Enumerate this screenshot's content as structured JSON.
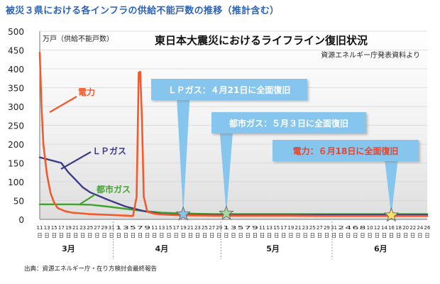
{
  "page_title": "被災３県における各インフラの供給不能戸数の推移（推計含む）",
  "source_note": "出典：資源エネルギー庁・在り方検討会最終報告",
  "colors": {
    "title": "#2b63b8",
    "electric": "#f25a2c",
    "lpgas": "#3d3b86",
    "citygas": "#3fa32e",
    "callout": "#86c6ee",
    "grid": "#d4d4d4",
    "star_blue": "#86c6ee",
    "star_green": "#a6d8a0",
    "star_yellow": "#f4e36a"
  },
  "chart_data": {
    "type": "line",
    "title": "東日本大震災におけるライフライン復旧状況",
    "subtitle": "資源エネルギー庁発表資料より",
    "ylabel": "万戸（供給不能戸数）",
    "ylim": [
      0,
      500
    ],
    "y_ticks": [
      0,
      50,
      100,
      150,
      200,
      250,
      300,
      350,
      400,
      450,
      500
    ],
    "x_range_days": [
      11,
      119
    ],
    "x_tick_days": [
      11,
      13,
      15,
      17,
      19,
      21,
      23,
      25,
      27,
      29,
      31,
      33,
      35,
      37,
      39,
      41,
      43,
      45,
      47,
      49,
      51,
      53,
      55,
      57,
      59,
      61,
      63,
      65,
      67,
      69,
      71,
      73,
      75,
      77,
      79,
      81,
      83,
      85,
      87,
      89,
      91,
      93,
      95,
      97,
      99,
      101,
      103,
      105,
      107,
      109,
      111,
      113,
      115,
      117,
      119
    ],
    "x_tick_labels": [
      "11",
      "13",
      "15",
      "17",
      "19",
      "21",
      "23",
      "25",
      "27",
      "29",
      "31",
      "1",
      "3",
      "5",
      "7",
      "9",
      "11",
      "13",
      "15",
      "17",
      "19",
      "21",
      "23",
      "25",
      "27",
      "29",
      "1",
      "3",
      "5",
      "7",
      "9",
      "11",
      "13",
      "15",
      "17",
      "19",
      "21",
      "23",
      "25",
      "27",
      "29",
      "31",
      "2",
      "4",
      "6",
      "8",
      "10",
      "12",
      "14",
      "16",
      "18",
      "20",
      "22",
      "24",
      "26"
    ],
    "day_suffix": "日",
    "months": [
      {
        "label": "3月",
        "center_day": 19
      },
      {
        "label": "4月",
        "center_day": 45
      },
      {
        "label": "5月",
        "center_day": 76
      },
      {
        "label": "6月",
        "center_day": 106
      }
    ],
    "month_dividers_day": [
      31.5,
      61.5,
      92.5
    ],
    "series": [
      {
        "name": "電力",
        "key": "electric",
        "x": [
          11,
          11.5,
          12,
          13,
          14,
          15,
          16,
          18,
          20,
          25,
          30,
          35,
          37,
          38,
          38.6,
          39,
          39.5,
          40,
          41,
          43,
          45,
          50,
          60,
          70,
          80,
          90,
          100,
          119
        ],
        "y": [
          443,
          300,
          200,
          120,
          70,
          45,
          30,
          22,
          18,
          14,
          12,
          10,
          9,
          60,
          390,
          392,
          260,
          60,
          20,
          15,
          13,
          11,
          10,
          10,
          10,
          9,
          9,
          9
        ]
      },
      {
        "name": "ＬＰガス",
        "key": "lpgas",
        "x": [
          11,
          15,
          17,
          19,
          21,
          23,
          25,
          30,
          35,
          40,
          45,
          50,
          51,
          60,
          70,
          80,
          90,
          100,
          119
        ],
        "y": [
          165,
          155,
          150,
          125,
          105,
          85,
          72,
          52,
          34,
          22,
          14,
          12,
          12,
          12,
          12,
          12,
          12,
          12,
          12
        ]
      },
      {
        "name": "都市ガス",
        "key": "citygas",
        "x": [
          11,
          20,
          25,
          30,
          35,
          40,
          45,
          50,
          55,
          60,
          63,
          70,
          80,
          90,
          100,
          119
        ],
        "y": [
          40,
          40,
          39,
          34,
          28,
          22,
          18,
          16,
          15,
          14,
          14,
          14,
          14,
          14,
          14,
          14
        ]
      }
    ],
    "legend_labels": [
      {
        "series": "electric",
        "text": "電力"
      },
      {
        "series": "lpgas",
        "text": "ＬＰガス"
      },
      {
        "series": "citygas",
        "text": "都市ガス"
      }
    ],
    "annotations": [
      {
        "text": "ＬＰガス：４月21日に全面復旧",
        "day": 51,
        "value": 12,
        "star": "star_blue"
      },
      {
        "text": "都市ガス：５月３日に全面復旧",
        "day": 63,
        "value": 14,
        "star": "star_green"
      },
      {
        "text": "電力：６月18日に全面復旧",
        "day": 109,
        "value": 9,
        "star": "star_yellow"
      }
    ]
  }
}
